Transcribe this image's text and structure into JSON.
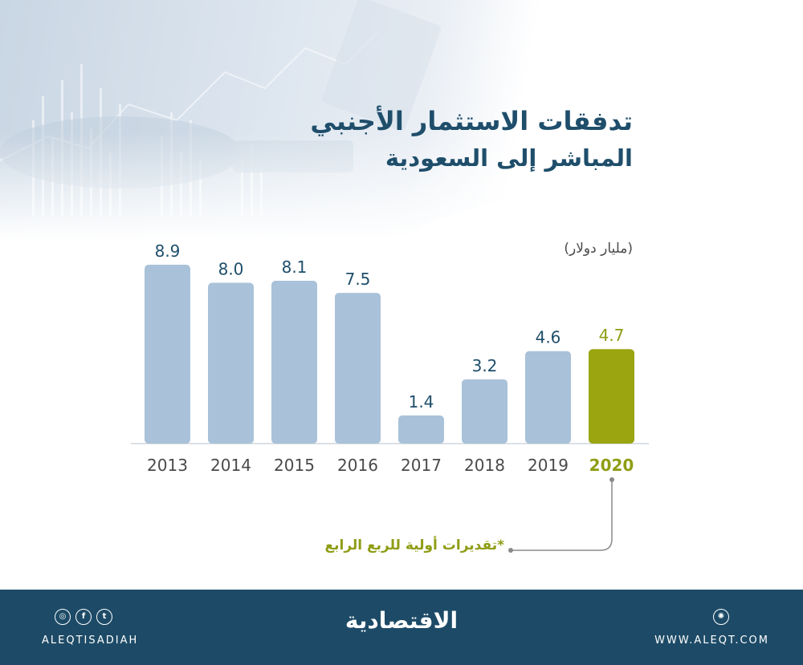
{
  "title": {
    "line1": "تدفقات الاستثمار الأجنبي",
    "line2": "المباشر إلى السعودية"
  },
  "unit_label": "(مليار دولار)",
  "note": "*تقديرات أولية للربع الرابع",
  "footer": {
    "handle": "ALEQTISADIAH",
    "website": "WWW.ALEQT.COM",
    "logo_text": "الاقتصادية",
    "icons": [
      "instagram-icon",
      "facebook-icon",
      "twitter-icon",
      "dribbble-icon"
    ]
  },
  "colors": {
    "bar": "#a9c2d9",
    "highlight": "#9aa510",
    "value_text": "#1f4e6b",
    "highlight_text": "#8f9d14",
    "axis_text": "#4a4a4a",
    "footer": "#1d4b67"
  },
  "chart_data": {
    "type": "bar",
    "title": "تدفقات الاستثمار الأجنبي المباشر إلى السعودية",
    "ylabel": "(مليار دولار)",
    "categories": [
      "2013",
      "2014",
      "2015",
      "2016",
      "2017",
      "2018",
      "2019",
      "2020"
    ],
    "values": [
      8.9,
      8.0,
      8.1,
      7.5,
      1.4,
      3.2,
      4.6,
      4.7
    ],
    "highlight_category": "2020",
    "ylim": [
      0,
      10
    ],
    "grid": false,
    "data_labels": true
  }
}
